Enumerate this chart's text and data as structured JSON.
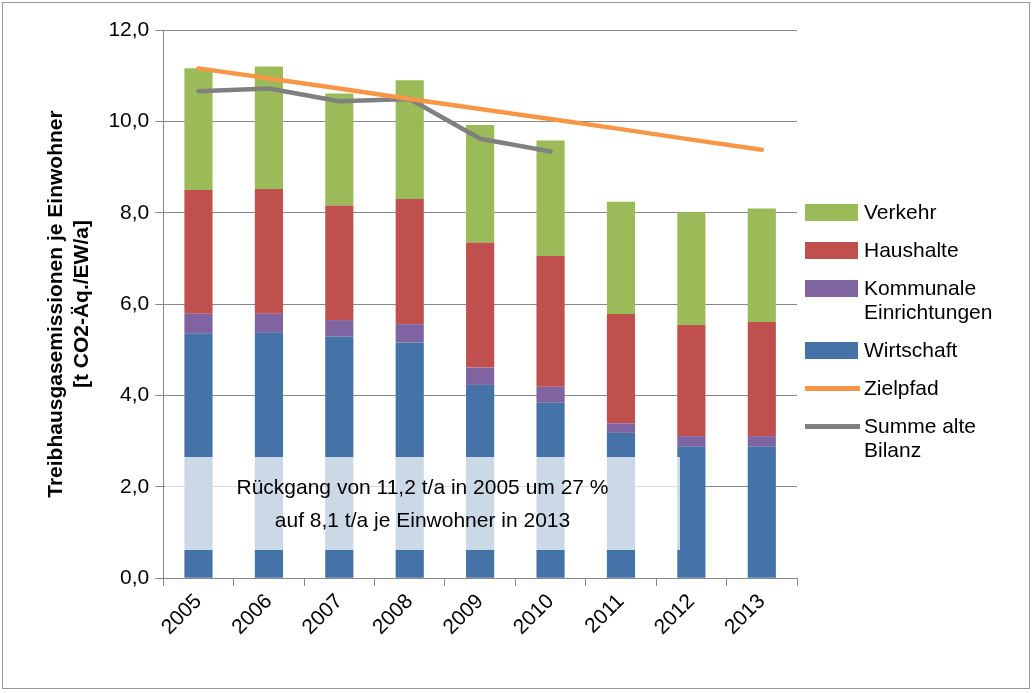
{
  "chart_data": {
    "type": "bar",
    "stacked": true,
    "ylabel": "Treibhausgasemissionen je Einwohner\n[t CO2-Äq./EW/a]",
    "categories": [
      "2005",
      "2006",
      "2007",
      "2008",
      "2009",
      "2010",
      "2011",
      "2012",
      "2013"
    ],
    "series": [
      {
        "name": "Wirtschaft",
        "color": "#4572a7",
        "values": [
          5.36,
          5.37,
          5.29,
          5.16,
          4.23,
          3.84,
          3.18,
          2.88,
          2.88
        ]
      },
      {
        "name": "Kommunale Einrichtungen",
        "color": "#8064a2",
        "values": [
          0.43,
          0.42,
          0.36,
          0.4,
          0.38,
          0.35,
          0.21,
          0.23,
          0.23
        ]
      },
      {
        "name": "Haushalte",
        "color": "#c0504d",
        "values": [
          2.71,
          2.73,
          2.51,
          2.74,
          2.74,
          2.86,
          2.39,
          2.43,
          2.5
        ]
      },
      {
        "name": "Verkehr",
        "color": "#9bbb59",
        "values": [
          2.66,
          2.68,
          2.45,
          2.6,
          2.57,
          2.53,
          2.46,
          2.47,
          2.48
        ]
      },
      {
        "name": "Zielpfad",
        "type": "line",
        "color": "#f79646",
        "values": [
          11.16,
          10.94,
          10.72,
          10.49,
          10.27,
          10.05,
          9.83,
          9.6,
          9.38
        ]
      },
      {
        "name": "Summe alte Bilanz",
        "type": "line",
        "color": "#808080",
        "values": [
          10.66,
          10.72,
          10.44,
          10.49,
          9.62,
          9.34,
          null,
          null,
          null
        ]
      }
    ],
    "ylim": [
      0,
      12
    ],
    "yticks": [
      {
        "value": 0,
        "label": "0,0"
      },
      {
        "value": 2,
        "label": "2,0"
      },
      {
        "value": 4,
        "label": "4,0"
      },
      {
        "value": 6,
        "label": "6,0"
      },
      {
        "value": 8,
        "label": "8,0"
      },
      {
        "value": 10,
        "label": "10,0"
      },
      {
        "value": 12,
        "label": "12,0"
      }
    ],
    "grid": "y",
    "legend": "right",
    "marker": "none",
    "annotations": [
      "Rückgang von 11,2 t/a in 2005 um 27 %\nauf 8,1 t/a je Einwohner in 2013"
    ]
  }
}
